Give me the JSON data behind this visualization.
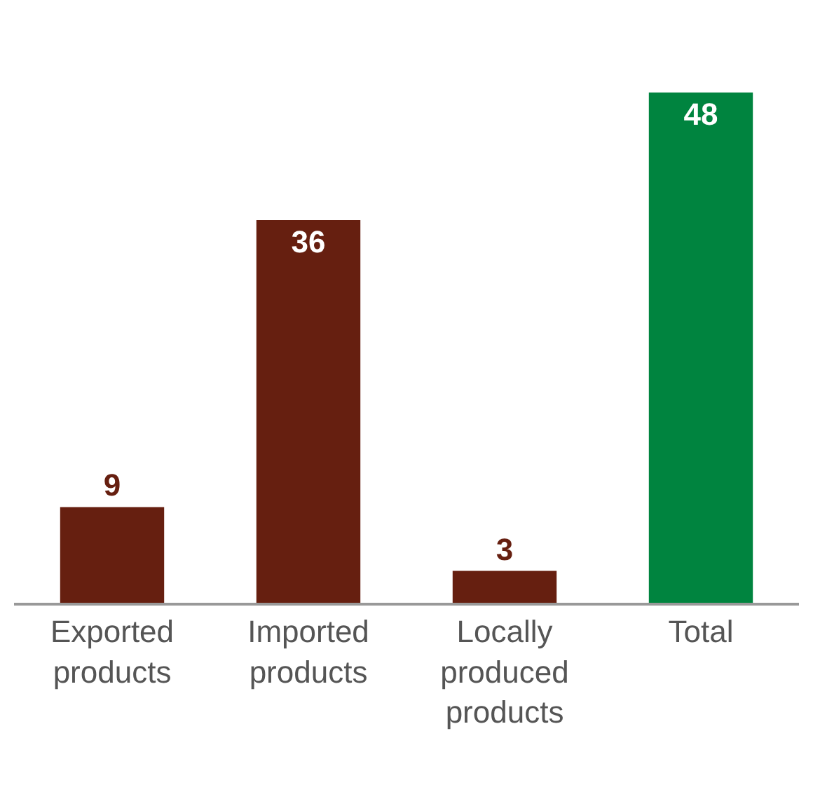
{
  "chart_data": {
    "type": "bar",
    "categories": [
      "Exported products",
      "Imported products",
      "Locally produced products",
      "Total"
    ],
    "values": [
      9,
      36,
      3,
      48
    ],
    "colors": [
      "#661f10",
      "#661f10",
      "#661f10",
      "#00843f"
    ],
    "data_labels": true,
    "legend": false
  }
}
